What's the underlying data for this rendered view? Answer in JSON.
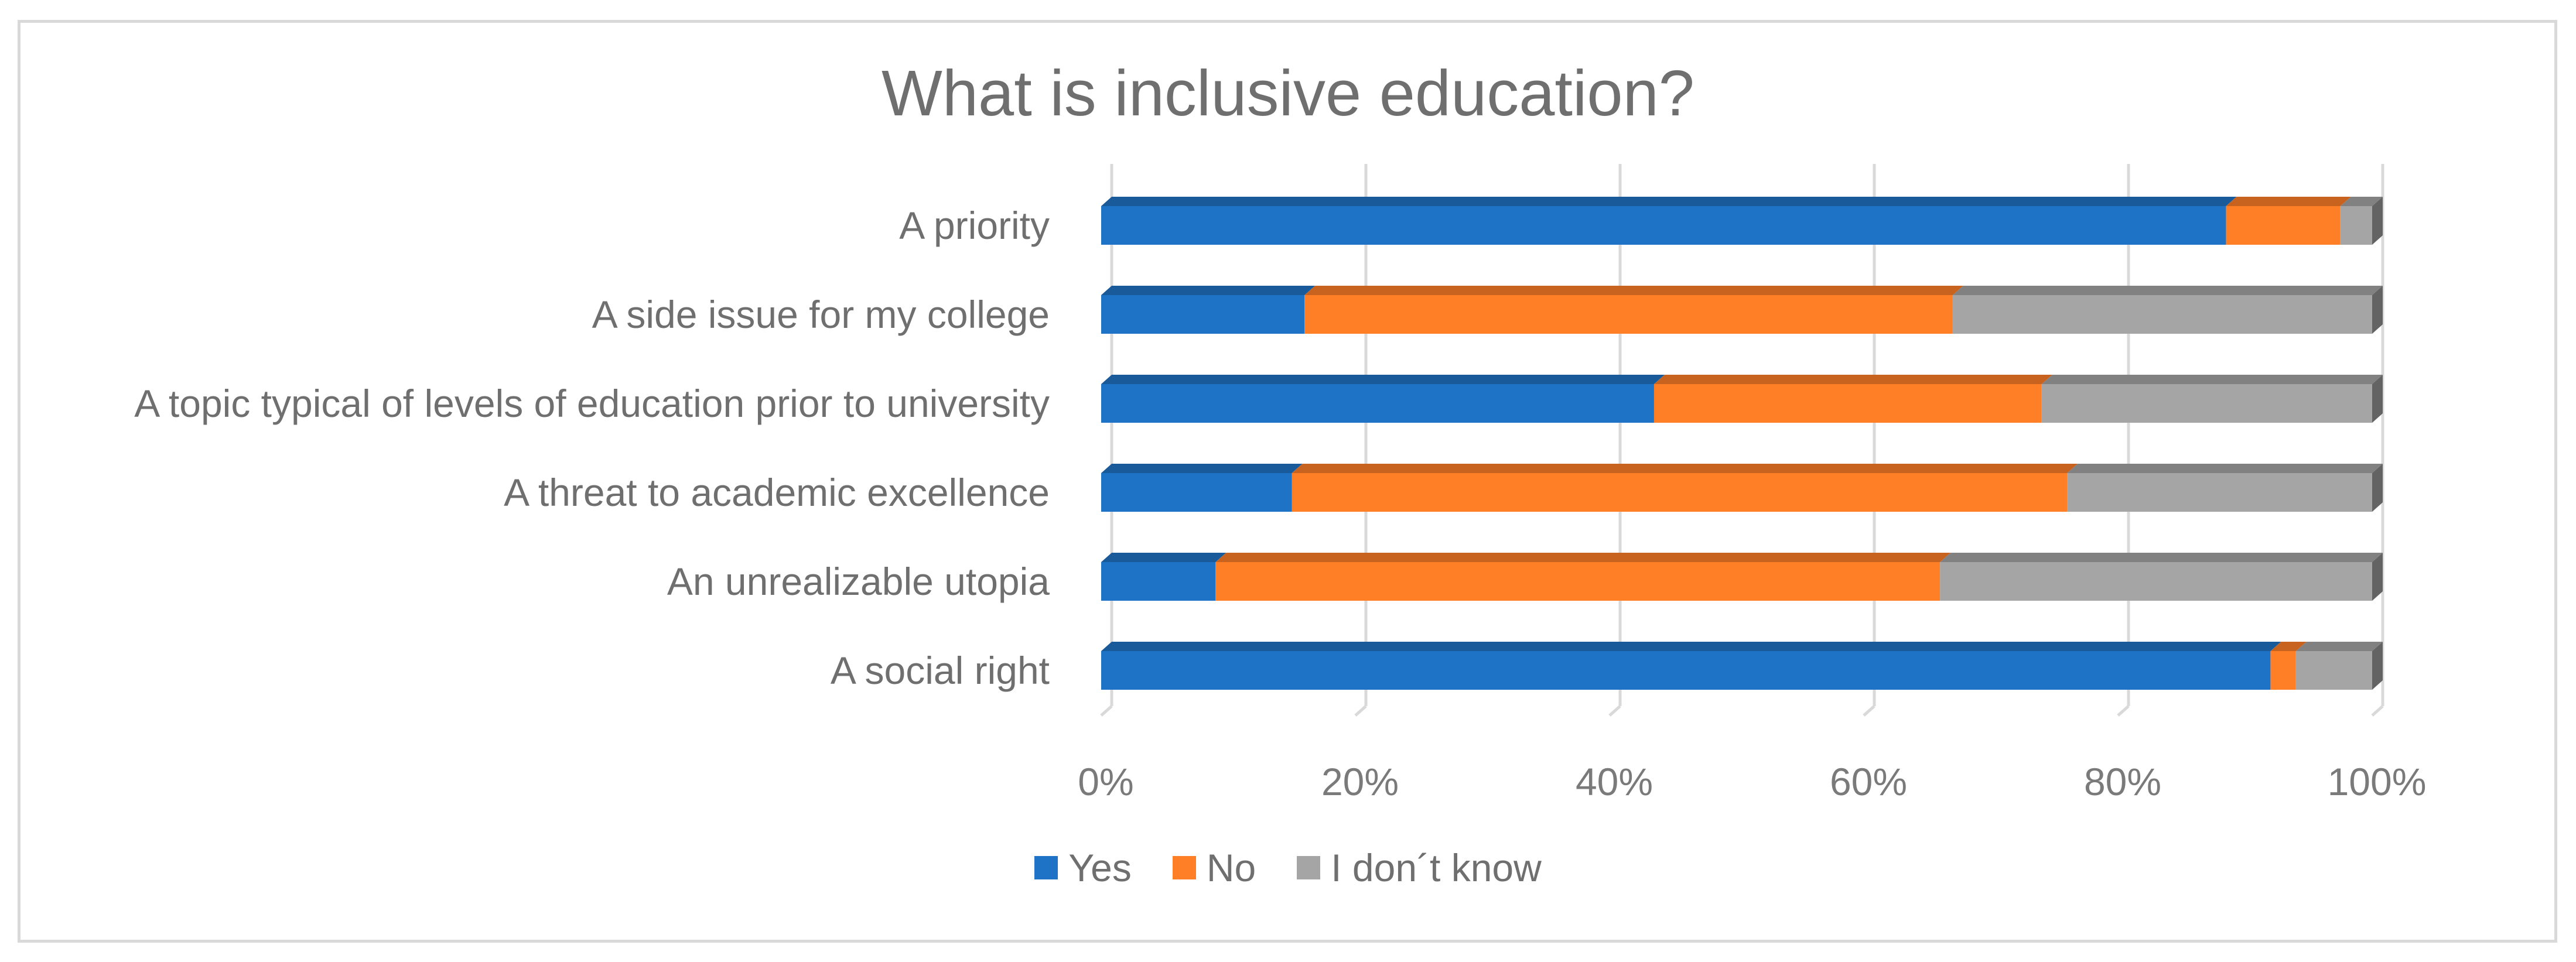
{
  "chart_data": {
    "type": "bar",
    "orientation": "horizontal",
    "stacked": "percent",
    "title": "What is inclusive education?",
    "categories": [
      "A priority",
      "A side issue for my college",
      "A topic typical of levels of education prior to university",
      "A threat to academic excellence",
      "An unrealizable utopia",
      "A social right"
    ],
    "series": [
      {
        "name": "Yes",
        "color": "#1f73c6",
        "values": [
          88.5,
          16,
          43.5,
          15,
          9,
          92
        ]
      },
      {
        "name": "No",
        "color": "#ff7f27",
        "values": [
          9,
          51,
          30.5,
          61,
          57,
          2
        ]
      },
      {
        "name": "I don´t know",
        "color": "#a5a5a5",
        "values": [
          2.5,
          33,
          26,
          24,
          34,
          6
        ]
      }
    ],
    "xlim": [
      0,
      100
    ],
    "xticks": [
      "0%",
      "20%",
      "40%",
      "60%",
      "80%",
      "100%"
    ],
    "grid": true,
    "legend_position": "bottom"
  }
}
